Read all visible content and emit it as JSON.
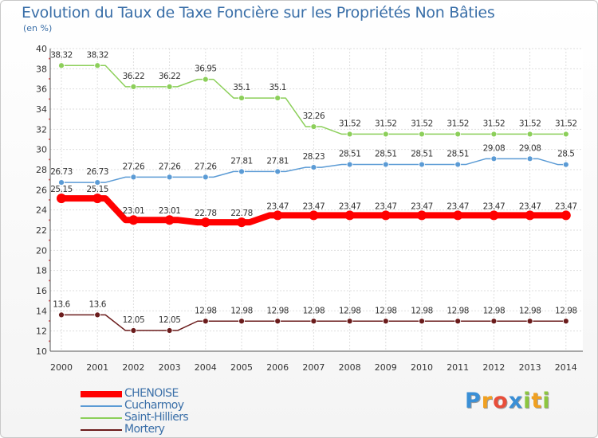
{
  "chart_data": {
    "type": "line",
    "title": "Evolution du Taux de Taxe Foncière sur les Propriétés Non Bâties",
    "ylabel": "(en %)",
    "xlabel": "",
    "ylim": [
      10,
      40
    ],
    "yticks": [
      "10",
      "12",
      "14",
      "16",
      "18",
      "20",
      "22",
      "24",
      "26",
      "28",
      "30",
      "32",
      "34",
      "36",
      "38",
      "40"
    ],
    "grid": true,
    "legend_position": "bottom-left",
    "x": [
      "2000",
      "2001",
      "2002",
      "2003",
      "2004",
      "2005",
      "2006",
      "2007",
      "2008",
      "2009",
      "2010",
      "2011",
      "2012",
      "2013",
      "2014"
    ],
    "series": [
      {
        "name": "CHENOISE",
        "color": "#ff0000",
        "values": [
          25.15,
          25.15,
          23.01,
          23.01,
          22.78,
          22.78,
          23.47,
          23.47,
          23.47,
          23.47,
          23.47,
          23.47,
          23.47,
          23.47,
          23.47
        ],
        "labels": [
          "25.15",
          "25.15",
          "23.01",
          "23.01",
          "22.78",
          "22.78",
          "23.47",
          "23.47",
          "23.47",
          "23.47",
          "23.47",
          "23.47",
          "23.47",
          "23.47",
          "23.47"
        ]
      },
      {
        "name": "Cucharmoy",
        "color": "#5b9bd5",
        "values": [
          26.73,
          26.73,
          27.26,
          27.26,
          27.26,
          27.81,
          27.81,
          28.23,
          28.51,
          28.51,
          28.51,
          28.51,
          29.08,
          29.08,
          28.5
        ],
        "labels": [
          "26.73",
          "26.73",
          "27.26",
          "27.26",
          "27.26",
          "27.81",
          "27.81",
          "28.23",
          "28.51",
          "28.51",
          "28.51",
          "28.51",
          "29.08",
          "29.08",
          "28.5"
        ]
      },
      {
        "name": "Saint-Hilliers",
        "color": "#8ccf5a",
        "values": [
          38.32,
          38.32,
          36.22,
          36.22,
          36.95,
          35.1,
          35.1,
          32.26,
          31.52,
          31.52,
          31.52,
          31.52,
          31.52,
          31.52,
          31.52
        ],
        "labels": [
          "38.32",
          "38.32",
          "36.22",
          "36.22",
          "36.95",
          "35.1",
          "35.1",
          "32.26",
          "31.52",
          "31.52",
          "31.52",
          "31.52",
          "31.52",
          "31.52",
          "31.52"
        ]
      },
      {
        "name": "Mortery",
        "color": "#6b1c1c",
        "values": [
          13.6,
          13.6,
          12.05,
          12.05,
          12.98,
          12.98,
          12.98,
          12.98,
          12.98,
          12.98,
          12.98,
          12.98,
          12.98,
          12.98,
          12.98
        ],
        "labels": [
          "13.6",
          "13.6",
          "12.05",
          "12.05",
          "12.98",
          "12.98",
          "12.98",
          "12.98",
          "12.98",
          "12.98",
          "12.98",
          "12.98",
          "12.98",
          "12.98",
          "12.98"
        ]
      }
    ]
  },
  "logo": {
    "letters": [
      "P",
      "r",
      "o",
      "x",
      "i",
      "t",
      "i"
    ],
    "colors": [
      "#3a8fd6",
      "#f0a020",
      "#e84e3a",
      "#3a8fd6",
      "#8cc63f",
      "#f0a020",
      "#8cc63f"
    ]
  }
}
